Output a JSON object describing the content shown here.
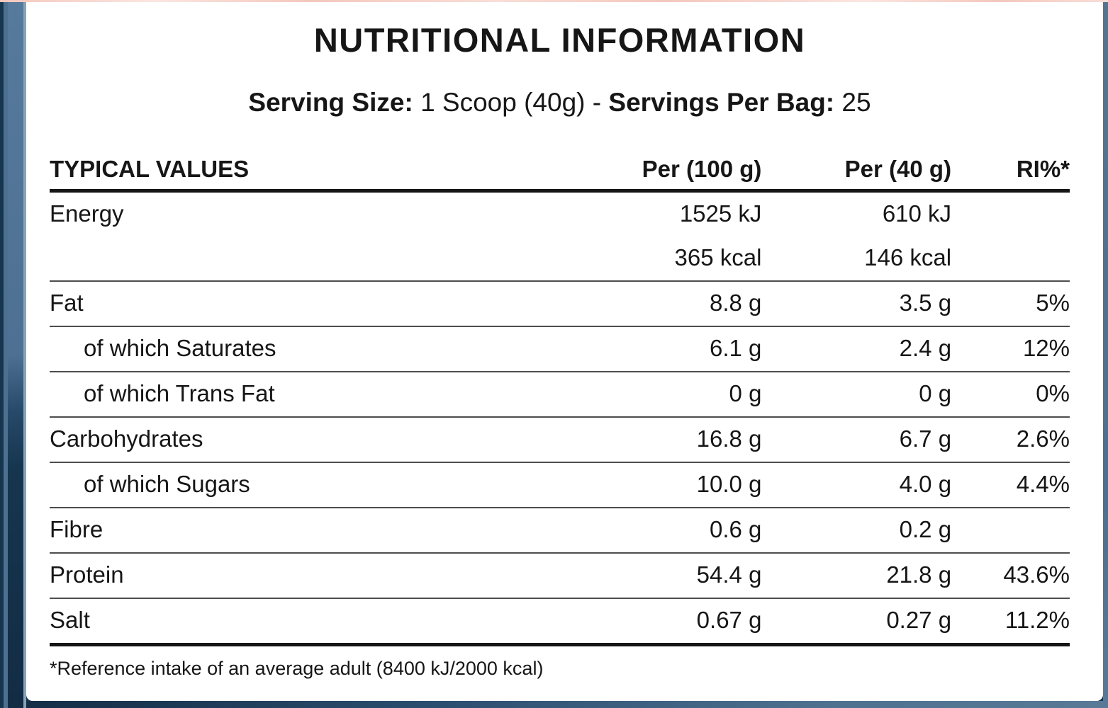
{
  "title": "NUTRITIONAL INFORMATION",
  "serving": {
    "size_label": "Serving Size:",
    "size_value": "1 Scoop (40g)",
    "separator": "-",
    "per_bag_label": "Servings Per Bag:",
    "per_bag_value": "25"
  },
  "table": {
    "headers": [
      "TYPICAL VALUES",
      "Per (100 g)",
      "Per (40 g)",
      "RI%*"
    ],
    "rows": [
      {
        "label": "Energy",
        "indent": false,
        "per100": "1525 kJ",
        "per40": "610 kJ",
        "ri": "",
        "rule_after": "none"
      },
      {
        "label": "",
        "indent": false,
        "per100": "365 kcal",
        "per40": "146 kcal",
        "ri": "",
        "rule_after": "thin"
      },
      {
        "label": "Fat",
        "indent": false,
        "per100": "8.8 g",
        "per40": "3.5 g",
        "ri": "5%",
        "rule_after": "thin"
      },
      {
        "label": "of which Saturates",
        "indent": true,
        "per100": "6.1 g",
        "per40": "2.4 g",
        "ri": "12%",
        "rule_after": "thin"
      },
      {
        "label": "of which Trans Fat",
        "indent": true,
        "per100": "0 g",
        "per40": "0 g",
        "ri": "0%",
        "rule_after": "thin"
      },
      {
        "label": "Carbohydrates",
        "indent": false,
        "per100": "16.8 g",
        "per40": "6.7 g",
        "ri": "2.6%",
        "rule_after": "thin"
      },
      {
        "label": "of which Sugars",
        "indent": true,
        "per100": "10.0 g",
        "per40": "4.0 g",
        "ri": "4.4%",
        "rule_after": "thin"
      },
      {
        "label": "Fibre",
        "indent": false,
        "per100": "0.6 g",
        "per40": "0.2 g",
        "ri": "",
        "rule_after": "thin"
      },
      {
        "label": "Protein",
        "indent": false,
        "per100": "54.4 g",
        "per40": "21.8 g",
        "ri": "43.6%",
        "rule_after": "thin"
      },
      {
        "label": "Salt",
        "indent": false,
        "per100": "0.67 g",
        "per40": "0.27 g",
        "ri": "11.2%",
        "rule_after": "thick"
      }
    ]
  },
  "footnote": "*Reference intake of an average adult (8400 kJ/2000 kcal)",
  "colors": {
    "frame_navy": "#16354f",
    "frame_steel": "#4e7090",
    "frame_edge": "#8aa2b6",
    "card_bg": "#ffffff",
    "top_accent": "#f4c7bd",
    "text": "#161616",
    "rule_thin": "#4d4d4d",
    "rule_thick": "#161616"
  }
}
